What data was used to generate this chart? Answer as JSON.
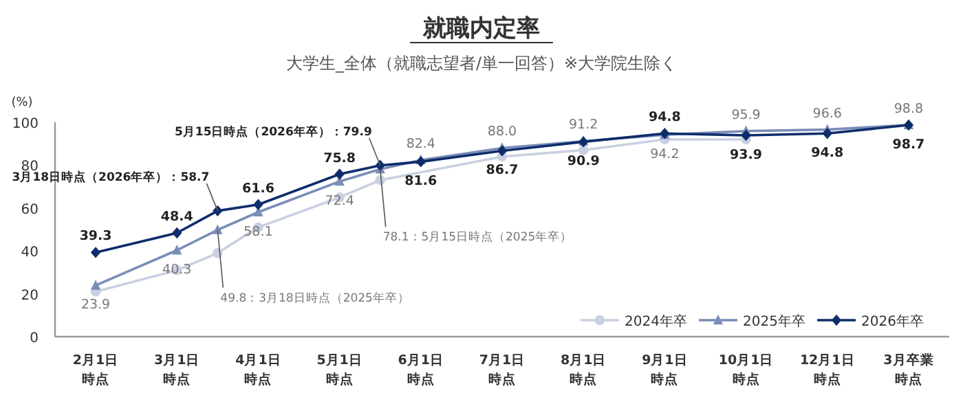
{
  "chart_data": {
    "type": "line",
    "title": "就職内定率",
    "subtitle": "大学生_全体（就職志望者/単一回答）※大学院生除く",
    "ylabel": "(%)",
    "categories": [
      "2月1日時点",
      "3月1日時点",
      null,
      "4月1日時点",
      "5月1日時点",
      null,
      "6月1日時点",
      "7月1日時点",
      "8月1日時点",
      "9月1日時点",
      "10月1日時点",
      "12月1日時点",
      "3月卒業時点"
    ],
    "series": [
      {
        "name": "2024年卒",
        "color": "#c9d0e2",
        "marker": "circle",
        "values": [
          21,
          31,
          39,
          51,
          65,
          73,
          null,
          84,
          87,
          92,
          92,
          null,
          null
        ]
      },
      {
        "name": "2025年卒",
        "color": "#7a8db8",
        "marker": "triangle",
        "values": [
          23.9,
          40.3,
          49.8,
          58.1,
          72.4,
          78.1,
          82.4,
          88.0,
          91.2,
          94.2,
          95.9,
          96.6,
          98.8
        ],
        "value_labels": [
          "23.9",
          "40.3",
          "49.8：3月18日時点（2025年卒）",
          "58.1",
          "72.4",
          "78.1：5月15日時点（2025年卒）",
          "82.4",
          "88.0",
          "91.2",
          "94.2",
          "95.9",
          "96.6",
          "98.8"
        ]
      },
      {
        "name": "2026年卒",
        "color": "#0e2d6b",
        "marker": "diamond",
        "values": [
          39.3,
          48.4,
          58.7,
          61.6,
          75.8,
          79.9,
          81.6,
          86.7,
          90.9,
          94.8,
          93.9,
          94.8,
          98.7
        ],
        "value_labels": [
          "39.3",
          "48.4",
          "3月18日時点（2026年卒）：58.7",
          "61.6",
          "75.8",
          "5月15日時点（2026年卒）：79.9",
          "81.6",
          "86.7",
          "90.9",
          "94.8",
          "93.9",
          "94.8",
          "98.7"
        ]
      }
    ],
    "ylim": [
      0,
      100
    ],
    "yticks": [
      0,
      20,
      40,
      60,
      80,
      100
    ],
    "grid": false,
    "legend": "bottom right",
    "line_style": "solid"
  }
}
